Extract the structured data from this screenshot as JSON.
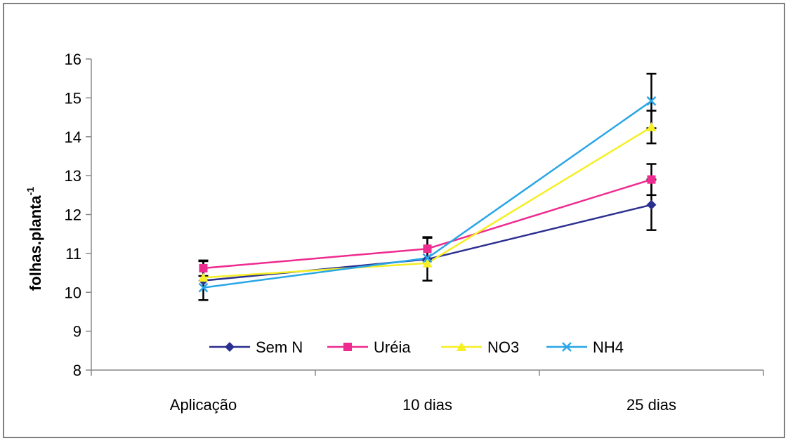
{
  "chart_data": {
    "type": "line",
    "title": "",
    "xlabel": "",
    "ylabel": "folhas.planta",
    "ylabel_superscript": "-1",
    "categories": [
      "Aplicação",
      "10 dias",
      "25 dias"
    ],
    "ylim": [
      8,
      16
    ],
    "yticks": [
      8,
      9,
      10,
      11,
      12,
      13,
      14,
      15,
      16
    ],
    "grid": false,
    "legend_position": "bottom-center",
    "series": [
      {
        "name": "Sem N",
        "values": [
          10.3,
          10.85,
          12.25
        ],
        "errors": [
          0.5,
          0.55,
          0.65
        ],
        "color": "#2b2f8f",
        "marker": "diamond"
      },
      {
        "name": "Uréia",
        "values": [
          10.62,
          11.12,
          12.9
        ],
        "errors": [
          0.2,
          0.3,
          0.4
        ],
        "color": "#ee2b8f",
        "marker": "square"
      },
      {
        "name": "NO3",
        "values": [
          10.38,
          10.75,
          14.25
        ],
        "errors": [
          0.0,
          0.0,
          0.42
        ],
        "color": "#f5ef24",
        "marker": "triangle"
      },
      {
        "name": "NH4",
        "values": [
          10.12,
          10.88,
          14.92
        ],
        "errors": [
          0.0,
          0.0,
          0.7
        ],
        "color": "#2aa6e6",
        "marker": "cross"
      }
    ]
  }
}
